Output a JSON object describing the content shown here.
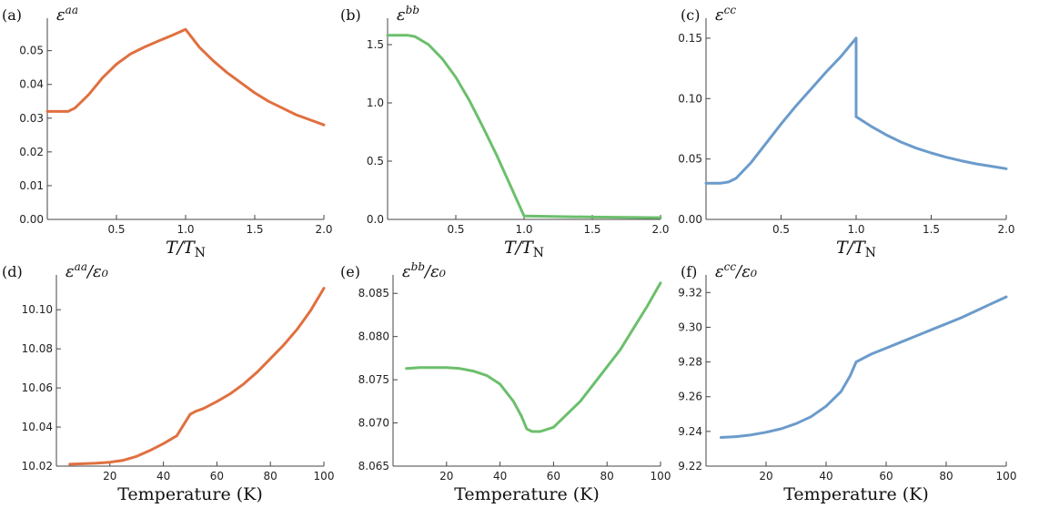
{
  "colors": {
    "orange": "#E07040",
    "green": "#6CBF6C",
    "blue": "#6B9BCB"
  },
  "chart_data": [
    {
      "id": "a",
      "type": "line",
      "panel_label": "(a)",
      "title": "εᵃᵃ",
      "ylabel_main": "ε",
      "ylabel_sup": "aa",
      "ylabel_suffix": "",
      "xlabel": "T/T",
      "xlabel_sub": "N",
      "xlim": [
        0.0,
        2.0
      ],
      "ylim": [
        0.0,
        0.058
      ],
      "xticks": [
        0.5,
        1.0,
        1.5,
        2.0
      ],
      "xtick_labels": [
        "0.5",
        "1.0",
        "1.5",
        "2.0"
      ],
      "yticks": [
        0.0,
        0.01,
        0.02,
        0.03,
        0.04,
        0.05
      ],
      "ytick_labels": [
        "0.00",
        "0.01",
        "0.02",
        "0.03",
        "0.04",
        "0.05"
      ],
      "color": "#E07040",
      "x": [
        0.0,
        0.1,
        0.15,
        0.2,
        0.3,
        0.4,
        0.5,
        0.6,
        0.7,
        0.8,
        0.9,
        1.0,
        1.1,
        1.2,
        1.3,
        1.4,
        1.5,
        1.6,
        1.7,
        1.8,
        1.9,
        2.0
      ],
      "y": [
        0.032,
        0.032,
        0.032,
        0.033,
        0.037,
        0.042,
        0.046,
        0.049,
        0.051,
        0.0528,
        0.0545,
        0.0563,
        0.051,
        0.047,
        0.0435,
        0.0405,
        0.0375,
        0.035,
        0.033,
        0.031,
        0.0295,
        0.028
      ]
    },
    {
      "id": "b",
      "type": "line",
      "panel_label": "(b)",
      "title": "εᵇᵇ",
      "ylabel_main": "ε",
      "ylabel_sup": "bb",
      "ylabel_suffix": "",
      "xlabel": "T/T",
      "xlabel_sub": "N",
      "xlim": [
        0.0,
        2.0
      ],
      "ylim": [
        0.0,
        1.68
      ],
      "xticks": [
        0.5,
        1.0,
        1.5,
        2.0
      ],
      "xtick_labels": [
        "0.5",
        "1.0",
        "1.5",
        "2.0"
      ],
      "yticks": [
        0.0,
        0.5,
        1.0,
        1.5
      ],
      "ytick_labels": [
        "0.0",
        "0.5",
        "1.0",
        "1.5"
      ],
      "color": "#6CBF6C",
      "x": [
        0.0,
        0.1,
        0.15,
        0.2,
        0.3,
        0.4,
        0.5,
        0.6,
        0.7,
        0.8,
        0.9,
        1.0,
        1.2,
        1.5,
        2.0
      ],
      "y": [
        1.58,
        1.58,
        1.58,
        1.57,
        1.5,
        1.38,
        1.22,
        1.02,
        0.79,
        0.55,
        0.29,
        0.03,
        0.025,
        0.02,
        0.015
      ]
    },
    {
      "id": "c",
      "type": "line",
      "panel_label": "(c)",
      "title": "εᶜᶜ",
      "ylabel_main": "ε",
      "ylabel_sup": "cc",
      "ylabel_suffix": "",
      "xlabel": "T/T",
      "xlabel_sub": "N",
      "xlim": [
        0.0,
        2.0
      ],
      "ylim": [
        0.0,
        0.162
      ],
      "xticks": [
        0.5,
        1.0,
        1.5,
        2.0
      ],
      "xtick_labels": [
        "0.5",
        "1.0",
        "1.5",
        "2.0"
      ],
      "yticks": [
        0.0,
        0.05,
        0.1,
        0.15
      ],
      "ytick_labels": [
        "0.00",
        "0.05",
        "0.10",
        "0.15"
      ],
      "color": "#6B9BCB",
      "x": [
        0.0,
        0.1,
        0.15,
        0.2,
        0.3,
        0.4,
        0.5,
        0.6,
        0.7,
        0.8,
        0.9,
        1.0,
        1.0,
        1.1,
        1.2,
        1.3,
        1.4,
        1.5,
        1.6,
        1.7,
        1.8,
        1.9,
        2.0
      ],
      "y": [
        0.03,
        0.03,
        0.031,
        0.034,
        0.047,
        0.063,
        0.079,
        0.094,
        0.108,
        0.122,
        0.135,
        0.15,
        0.085,
        0.077,
        0.07,
        0.064,
        0.059,
        0.055,
        0.0515,
        0.0485,
        0.046,
        0.044,
        0.042
      ]
    },
    {
      "id": "d",
      "type": "line",
      "panel_label": "(d)",
      "title": "εᵃᵃ/ε₀",
      "ylabel_main": "ε",
      "ylabel_sup": "aa",
      "ylabel_suffix": "/ε₀",
      "xlabel": "Temperature (K)",
      "xlabel_sub": "",
      "xlim": [
        0,
        100
      ],
      "ylim": [
        10.02,
        10.115
      ],
      "xticks": [
        20,
        40,
        60,
        80,
        100
      ],
      "xtick_labels": [
        "20",
        "40",
        "60",
        "80",
        "100"
      ],
      "yticks": [
        10.02,
        10.04,
        10.06,
        10.08,
        10.1
      ],
      "ytick_labels": [
        "10.02",
        "10.04",
        "10.06",
        "10.08",
        "10.10"
      ],
      "color": "#E07040",
      "x": [
        5,
        10,
        15,
        20,
        25,
        30,
        35,
        40,
        45,
        50,
        52,
        55,
        60,
        65,
        70,
        75,
        80,
        85,
        90,
        95,
        100
      ],
      "y": [
        10.021,
        10.0212,
        10.0215,
        10.022,
        10.023,
        10.025,
        10.028,
        10.0315,
        10.0355,
        10.0465,
        10.048,
        10.0495,
        10.053,
        10.057,
        10.062,
        10.068,
        10.075,
        10.082,
        10.09,
        10.0995,
        10.111
      ]
    },
    {
      "id": "e",
      "type": "line",
      "panel_label": "(e)",
      "title": "εᵇᵇ/ε₀",
      "ylabel_main": "ε",
      "ylabel_sup": "bb",
      "ylabel_suffix": "/ε₀",
      "xlabel": "Temperature (K)",
      "xlabel_sub": "",
      "xlim": [
        0,
        100
      ],
      "ylim": [
        8.065,
        8.0865
      ],
      "xticks": [
        20,
        40,
        60,
        80,
        100
      ],
      "xtick_labels": [
        "20",
        "40",
        "60",
        "80",
        "100"
      ],
      "yticks": [
        8.065,
        8.07,
        8.075,
        8.08,
        8.085
      ],
      "ytick_labels": [
        "8.065",
        "8.070",
        "8.075",
        "8.080",
        "8.085"
      ],
      "color": "#6CBF6C",
      "x": [
        5,
        10,
        15,
        20,
        25,
        30,
        35,
        40,
        45,
        48,
        50,
        52,
        55,
        60,
        65,
        70,
        75,
        80,
        85,
        90,
        95,
        100
      ],
      "y": [
        8.0763,
        8.0764,
        8.0764,
        8.0764,
        8.0763,
        8.076,
        8.0755,
        8.0745,
        8.0725,
        8.0708,
        8.0693,
        8.069,
        8.069,
        8.0695,
        8.071,
        8.0725,
        8.0745,
        8.0765,
        8.0785,
        8.081,
        8.0835,
        8.0862
      ]
    },
    {
      "id": "f",
      "type": "line",
      "panel_label": "(f)",
      "title": "εᶜᶜ/ε₀",
      "ylabel_main": "ε",
      "ylabel_sup": "cc",
      "ylabel_suffix": "/ε₀",
      "xlabel": "Temperature (K)",
      "xlabel_sub": "",
      "xlim": [
        0,
        100
      ],
      "ylim": [
        9.22,
        9.327
      ],
      "xticks": [
        20,
        40,
        60,
        80,
        100
      ],
      "xtick_labels": [
        "20",
        "40",
        "60",
        "80",
        "100"
      ],
      "yticks": [
        9.22,
        9.24,
        9.26,
        9.28,
        9.3,
        9.32
      ],
      "ytick_labels": [
        "9.22",
        "9.24",
        "9.26",
        "9.28",
        "9.30",
        "9.32"
      ],
      "color": "#6B9BCB",
      "x": [
        5,
        10,
        15,
        20,
        25,
        30,
        35,
        40,
        45,
        48,
        50,
        55,
        60,
        65,
        70,
        75,
        80,
        85,
        90,
        95,
        100
      ],
      "y": [
        9.2365,
        9.237,
        9.238,
        9.2395,
        9.2415,
        9.2445,
        9.2485,
        9.2545,
        9.263,
        9.272,
        9.28,
        9.2845,
        9.288,
        9.2915,
        9.295,
        9.2985,
        9.302,
        9.3055,
        9.3095,
        9.3135,
        9.3175
      ]
    }
  ]
}
